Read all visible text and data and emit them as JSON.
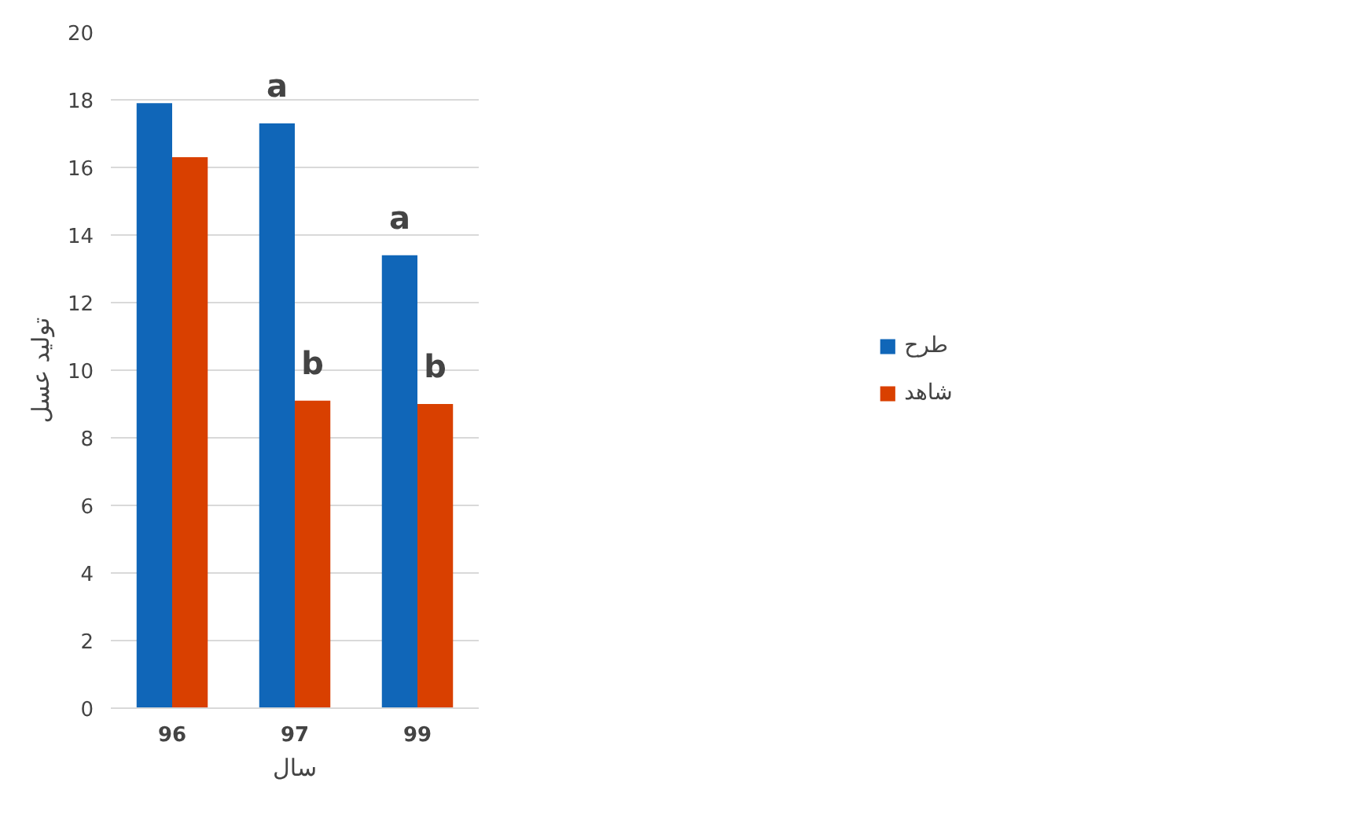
{
  "chart_data": {
    "type": "bar",
    "xlabel": "سال",
    "ylabel": "تولید عسل",
    "categories": [
      "96",
      "97",
      "99"
    ],
    "series": [
      {
        "name": "طرح",
        "color": "#1066b8",
        "values": [
          17.9,
          17.3,
          13.4
        ]
      },
      {
        "name": "شاهد",
        "color": "#d94000",
        "values": [
          16.3,
          9.1,
          9.0
        ]
      }
    ],
    "ylim": [
      0,
      20
    ],
    "yticks": [
      0,
      2,
      4,
      6,
      8,
      10,
      12,
      14,
      16,
      18,
      20
    ],
    "grid": "y",
    "legend": "right",
    "annotations": [
      {
        "text": "a",
        "x": "97",
        "y": 17.3
      },
      {
        "text": "b",
        "x": "97",
        "y": 9.1
      },
      {
        "text": "a",
        "x": "99",
        "y": 13.4
      },
      {
        "text": "b",
        "x": "99",
        "y": 9.0
      }
    ]
  }
}
